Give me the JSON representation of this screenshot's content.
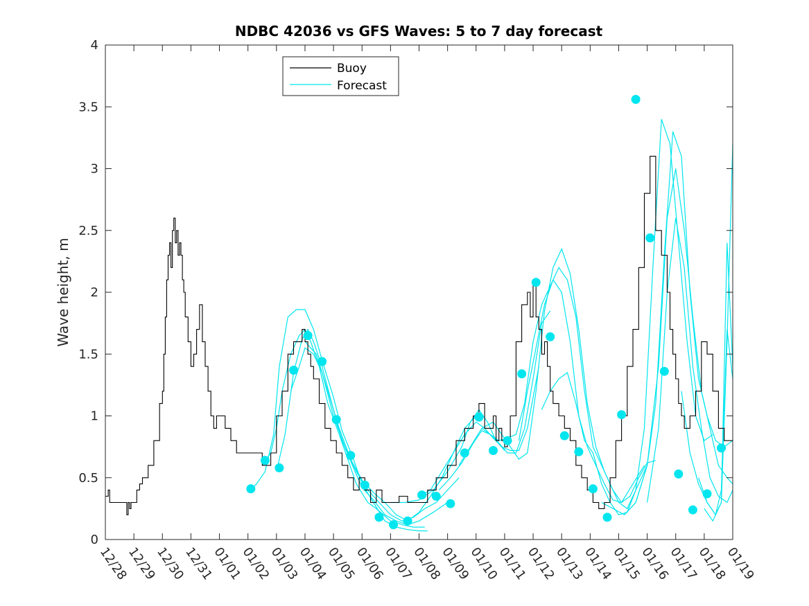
{
  "chart_data": {
    "type": "line",
    "title": "NDBC 42036 vs GFS Waves: 5 to 7 day forecast",
    "xlabel": "",
    "ylabel": "Wave height, m",
    "xlim": [
      0,
      22
    ],
    "ylim": [
      0,
      4
    ],
    "x_unit": "days since 12/28 00:00",
    "x_tick_values": [
      0,
      1,
      2,
      3,
      4,
      5,
      6,
      7,
      8,
      9,
      10,
      11,
      12,
      13,
      14,
      15,
      16,
      17,
      18,
      19,
      20,
      21,
      22
    ],
    "x_tick_labels": [
      "12/28",
      "12/29",
      "12/30",
      "12/31",
      "01/01",
      "01/02",
      "01/03",
      "01/04",
      "01/05",
      "01/06",
      "01/07",
      "01/08",
      "01/09",
      "01/10",
      "01/11",
      "01/12",
      "01/13",
      "01/14",
      "01/15",
      "01/16",
      "01/17",
      "01/18",
      "01/19"
    ],
    "y_tick_values": [
      0,
      0.5,
      1,
      1.5,
      2,
      2.5,
      3,
      3.5,
      4
    ],
    "y_tick_labels": [
      "0",
      "0.5",
      "1",
      "1.5",
      "2",
      "2.5",
      "3",
      "3.5",
      "4"
    ],
    "legend": {
      "position": "top-left",
      "entries": [
        {
          "label": "Buoy",
          "color": "#000000"
        },
        {
          "label": "Forecast",
          "color": "#00e5ee"
        }
      ]
    },
    "colors": {
      "buoy": "#000000",
      "forecast": "#00e5ee",
      "marker": "#00e5ee"
    },
    "series": [
      {
        "name": "Buoy",
        "x": [
          0,
          0.1,
          0.15,
          0.3,
          0.6,
          0.75,
          0.8,
          0.85,
          0.9,
          1.0,
          1.1,
          1.2,
          1.3,
          1.5,
          1.7,
          1.9,
          2.0,
          2.05,
          2.1,
          2.15,
          2.2,
          2.25,
          2.3,
          2.35,
          2.4,
          2.45,
          2.5,
          2.55,
          2.6,
          2.65,
          2.7,
          2.75,
          2.8,
          2.9,
          3.0,
          3.1,
          3.2,
          3.3,
          3.4,
          3.5,
          3.6,
          3.7,
          3.8,
          3.9,
          4.0,
          4.2,
          4.4,
          4.6,
          4.8,
          5.0,
          5.2,
          5.5,
          5.8,
          6.0,
          6.2,
          6.4,
          6.6,
          6.8,
          6.9,
          7.0,
          7.1,
          7.2,
          7.3,
          7.5,
          7.7,
          7.9,
          8.1,
          8.3,
          8.5,
          8.7,
          8.9,
          9.1,
          9.3,
          9.5,
          9.7,
          10.0,
          10.3,
          10.6,
          11.0,
          11.3,
          11.6,
          12.0,
          12.3,
          12.6,
          12.9,
          13.1,
          13.3,
          13.5,
          13.6,
          13.7,
          13.8,
          13.9,
          14.0,
          14.1,
          14.2,
          14.4,
          14.6,
          14.8,
          14.9,
          15.0,
          15.1,
          15.2,
          15.3,
          15.4,
          15.5,
          15.6,
          15.7,
          15.9,
          16.1,
          16.3,
          16.5,
          16.7,
          16.9,
          17.1,
          17.3,
          17.5,
          17.7,
          17.9,
          18.1,
          18.3,
          18.5,
          18.7,
          18.9,
          19.1,
          19.3,
          19.5,
          19.7,
          19.8,
          19.9,
          20.0,
          20.1,
          20.2,
          20.3,
          20.5,
          20.7,
          20.9,
          21.1,
          21.3,
          21.5,
          21.7,
          21.9,
          22.0
        ],
        "values": [
          0.35,
          0.4,
          0.3,
          0.3,
          0.3,
          0.2,
          0.3,
          0.25,
          0.3,
          0.3,
          0.4,
          0.45,
          0.5,
          0.6,
          0.8,
          1.1,
          1.2,
          1.5,
          1.8,
          2.1,
          2.3,
          2.4,
          2.2,
          2.5,
          2.6,
          2.4,
          2.5,
          2.3,
          2.4,
          2.3,
          2.1,
          2.0,
          1.8,
          1.6,
          1.4,
          1.5,
          1.7,
          1.9,
          1.6,
          1.4,
          1.2,
          1.0,
          0.9,
          1.0,
          1.0,
          0.9,
          0.8,
          0.7,
          0.7,
          0.7,
          0.7,
          0.6,
          0.7,
          1.0,
          1.2,
          1.5,
          1.6,
          1.6,
          1.7,
          1.6,
          1.5,
          1.4,
          1.3,
          1.1,
          0.9,
          0.8,
          0.7,
          0.6,
          0.5,
          0.4,
          0.5,
          0.4,
          0.3,
          0.4,
          0.3,
          0.3,
          0.35,
          0.3,
          0.3,
          0.4,
          0.5,
          0.6,
          0.8,
          0.9,
          1.0,
          1.1,
          0.9,
          0.9,
          1.0,
          0.8,
          0.9,
          0.8,
          0.75,
          0.8,
          1.0,
          1.6,
          1.9,
          2.0,
          1.8,
          2.1,
          1.8,
          1.7,
          1.5,
          1.6,
          1.4,
          1.2,
          1.1,
          1.0,
          0.9,
          0.8,
          0.6,
          0.5,
          0.4,
          0.3,
          0.25,
          0.3,
          0.5,
          0.8,
          1.0,
          1.4,
          1.7,
          2.2,
          2.8,
          3.1,
          2.5,
          2.3,
          2.0,
          1.7,
          1.5,
          1.3,
          1.1,
          1.0,
          0.9,
          1.0,
          1.2,
          1.6,
          1.5,
          1.2,
          0.9,
          0.8,
          0.8,
          0.8
        ]
      },
      {
        "name": "Forecast",
        "segments": [
          {
            "x": [
              5.0,
              5.3,
              5.6,
              5.9,
              6.1,
              6.4,
              6.7,
              7.0,
              7.3,
              7.6,
              8.0,
              8.3,
              8.7,
              9.0,
              9.4,
              9.8,
              10.2,
              10.6,
              11.0,
              11.3
            ],
            "values": [
              0.38,
              0.45,
              0.55,
              0.85,
              1.4,
              1.8,
              1.86,
              1.86,
              1.7,
              1.45,
              1.15,
              0.88,
              0.65,
              0.45,
              0.3,
              0.15,
              0.1,
              0.08,
              0.07,
              0.07
            ]
          },
          {
            "x": [
              5.5,
              5.8,
              6.0,
              6.2,
              6.5,
              6.8,
              7.0,
              7.2,
              7.5,
              7.8,
              8.2,
              8.5,
              8.8,
              9.2,
              9.5,
              10.0,
              10.4,
              10.8,
              11.2
            ],
            "values": [
              0.6,
              0.7,
              0.9,
              1.2,
              1.5,
              1.65,
              1.7,
              1.6,
              1.4,
              1.1,
              0.85,
              0.65,
              0.45,
              0.3,
              0.25,
              0.15,
              0.12,
              0.1,
              0.1
            ]
          },
          {
            "x": [
              6.0,
              6.3,
              6.6,
              6.9,
              7.1,
              7.3,
              7.6,
              8.0,
              8.3,
              8.7,
              9.0,
              9.4,
              9.8,
              10.2,
              10.6,
              11.0,
              11.5,
              12.0
            ],
            "values": [
              0.55,
              0.85,
              1.35,
              1.62,
              1.7,
              1.6,
              1.4,
              1.05,
              0.8,
              0.58,
              0.42,
              0.32,
              0.2,
              0.15,
              0.12,
              0.15,
              0.22,
              0.3
            ]
          },
          {
            "x": [
              6.5,
              6.8,
              7.0,
              7.3,
              7.6,
              8.0,
              8.4,
              8.8,
              9.2,
              9.6,
              10.0,
              10.4,
              10.8,
              11.2,
              11.6,
              12.0,
              12.4
            ],
            "values": [
              1.2,
              1.4,
              1.55,
              1.5,
              1.35,
              1.0,
              0.75,
              0.55,
              0.4,
              0.3,
              0.2,
              0.15,
              0.18,
              0.25,
              0.3,
              0.4,
              0.5
            ]
          },
          {
            "x": [
              7.0,
              7.4,
              7.8,
              8.2,
              8.6,
              9.0,
              9.4,
              9.8,
              10.2,
              10.6,
              11.0,
              11.4,
              11.8,
              12.2,
              12.6,
              13.0
            ],
            "values": [
              1.6,
              1.5,
              1.2,
              0.9,
              0.65,
              0.48,
              0.38,
              0.3,
              0.2,
              0.15,
              0.22,
              0.35,
              0.5,
              0.7,
              0.9,
              1.0
            ]
          },
          {
            "x": [
              10.0,
              10.5,
              11.0,
              11.5,
              12.0,
              12.5,
              12.8,
              13.1,
              13.4,
              13.7,
              14.0
            ],
            "values": [
              0.3,
              0.3,
              0.32,
              0.4,
              0.55,
              0.75,
              0.95,
              1.05,
              0.95,
              0.8,
              0.72
            ]
          },
          {
            "x": [
              11.0,
              11.4,
              11.8,
              12.2,
              12.6,
              13.0,
              13.3,
              13.6,
              13.9,
              14.2,
              14.5,
              14.8,
              15.2
            ],
            "values": [
              0.35,
              0.4,
              0.55,
              0.7,
              0.85,
              0.95,
              0.9,
              0.82,
              0.75,
              0.72,
              0.72,
              0.9,
              1.4
            ]
          },
          {
            "x": [
              11.7,
              12.1,
              12.5,
              12.9,
              13.2,
              13.5,
              13.8,
              14.1,
              14.4,
              14.7,
              15.0,
              15.3,
              15.6
            ],
            "values": [
              0.4,
              0.5,
              0.62,
              0.78,
              0.88,
              0.85,
              0.78,
              0.7,
              0.7,
              0.9,
              1.3,
              1.75,
              1.85
            ]
          },
          {
            "x": [
              12.4,
              12.8,
              13.2,
              13.6,
              13.9,
              14.2,
              14.5,
              14.8,
              15.1,
              15.4,
              15.7,
              16.0,
              16.3,
              16.6,
              16.9,
              17.2,
              17.5,
              17.8,
              18.1,
              18.5,
              18.9
            ],
            "values": [
              0.6,
              0.75,
              0.9,
              0.95,
              0.85,
              0.75,
              0.65,
              0.7,
              1.2,
              1.85,
              2.2,
              2.35,
              2.15,
              1.7,
              1.1,
              0.75,
              0.55,
              0.4,
              0.3,
              0.45,
              0.6
            ]
          },
          {
            "x": [
              13.2,
              13.5,
              13.8,
              14.1,
              14.4,
              14.7,
              15.0,
              15.3,
              15.6,
              15.9,
              16.2,
              16.5,
              16.8,
              17.1,
              17.4,
              17.7,
              18.0,
              18.3,
              18.6,
              19.0
            ],
            "values": [
              0.9,
              0.85,
              0.8,
              0.82,
              0.85,
              1.1,
              1.6,
              1.9,
              2.05,
              2.2,
              2.1,
              1.8,
              1.2,
              0.75,
              0.6,
              0.45,
              0.3,
              0.25,
              0.4,
              0.6
            ]
          },
          {
            "x": [
              14.5,
              14.8,
              15.1,
              15.4,
              15.7,
              16.0,
              16.3,
              16.6,
              16.9,
              17.2,
              17.5,
              17.8,
              18.1,
              18.4,
              18.7,
              19.0,
              19.3
            ],
            "values": [
              0.8,
              1.2,
              1.55,
              1.9,
              2.1,
              2.0,
              1.6,
              1.0,
              0.75,
              0.6,
              0.45,
              0.32,
              0.3,
              0.35,
              0.5,
              0.62,
              0.64
            ]
          },
          {
            "x": [
              15.3,
              15.6,
              15.9,
              16.2,
              16.5,
              16.8,
              17.1,
              17.4,
              17.7,
              18.0,
              18.3,
              18.6,
              18.9,
              19.2,
              19.5,
              19.8,
              20.1,
              20.4,
              20.7,
              21.0,
              21.3
            ],
            "values": [
              1.05,
              1.2,
              1.3,
              1.35,
              1.1,
              0.8,
              0.7,
              0.45,
              0.3,
              0.2,
              0.22,
              0.4,
              0.9,
              2.2,
              3.4,
              3.2,
              2.4,
              1.6,
              1.0,
              0.8,
              0.85
            ]
          },
          {
            "x": [
              17.4,
              17.8,
              18.2,
              18.6,
              19.0,
              19.3,
              19.6,
              19.9,
              20.2,
              20.5,
              20.8,
              21.1,
              21.4,
              21.7,
              22.0
            ],
            "values": [
              0.3,
              0.25,
              0.2,
              0.3,
              0.6,
              1.1,
              2.3,
              3.3,
              3.1,
              2.0,
              1.3,
              1.0,
              0.8,
              0.75,
              0.8
            ]
          },
          {
            "x": [
              18.2,
              18.6,
              19.0,
              19.4,
              19.7,
              20.0,
              20.3,
              20.6,
              20.9,
              21.2,
              21.5,
              21.8,
              22.0
            ],
            "values": [
              0.2,
              0.3,
              0.6,
              1.4,
              2.6,
              3.0,
              2.5,
              1.8,
              1.2,
              0.9,
              0.6,
              0.5,
              0.45
            ]
          },
          {
            "x": [
              19.0,
              19.4,
              19.7,
              20.0,
              20.3,
              20.6,
              20.9,
              21.2,
              21.5,
              21.8,
              22.0
            ],
            "values": [
              0.3,
              0.9,
              2.0,
              2.6,
              2.2,
              1.4,
              0.9,
              0.5,
              0.35,
              0.3,
              0.4
            ]
          },
          {
            "x": [
              20.2,
              20.5,
              20.8,
              21.1,
              21.4,
              21.6,
              21.8,
              22.0
            ],
            "values": [
              1.2,
              0.7,
              0.45,
              0.3,
              0.2,
              0.3,
              2.4,
              1.4
            ]
          },
          {
            "x": [
              20.8,
              21.1,
              21.4,
              21.6,
              21.8,
              22.0
            ],
            "values": [
              0.5,
              0.3,
              0.2,
              0.4,
              1.7,
              1.3
            ]
          },
          {
            "x": [
              21.0,
              21.3,
              21.6,
              21.8,
              22.0
            ],
            "values": [
              0.25,
              0.15,
              0.3,
              1.6,
              3.2
            ]
          }
        ]
      },
      {
        "name": "Forecast points",
        "x": [
          5.1,
          5.6,
          6.1,
          6.6,
          7.1,
          7.6,
          8.1,
          8.6,
          9.1,
          9.6,
          10.1,
          10.6,
          11.1,
          11.6,
          12.1,
          12.6,
          13.1,
          13.6,
          14.1,
          14.6,
          15.1,
          15.6,
          16.1,
          16.6,
          17.1,
          17.6,
          18.1,
          18.6,
          19.1,
          19.6,
          20.1,
          20.6,
          21.1,
          21.6
        ],
        "values": [
          0.41,
          0.64,
          0.58,
          1.37,
          1.65,
          1.44,
          0.97,
          0.68,
          0.44,
          0.18,
          0.12,
          0.15,
          0.36,
          0.35,
          0.29,
          0.7,
          0.99,
          0.72,
          0.8,
          1.34,
          2.08,
          1.64,
          0.84,
          0.71,
          0.41,
          0.18,
          1.01,
          3.56,
          2.44,
          1.36,
          0.53,
          0.24,
          0.37,
          0.74
        ]
      }
    ]
  }
}
